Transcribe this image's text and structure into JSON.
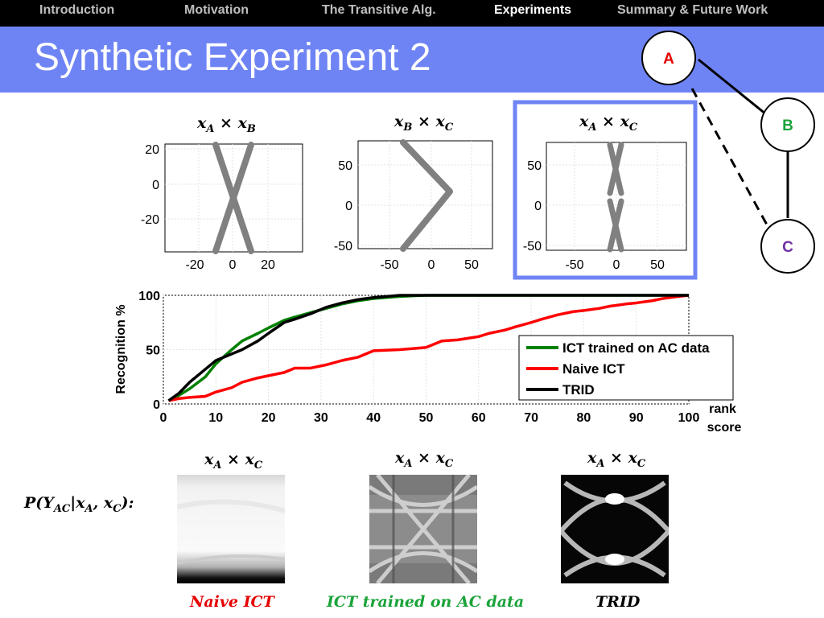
{
  "nav": {
    "items": [
      "Introduction",
      "Motivation",
      "The Transitive Alg.",
      "Experiments",
      "Summary & Future Work"
    ],
    "active_index": 3
  },
  "slide": {
    "title": "Synthetic Experiment 2"
  },
  "graph": {
    "nodes": [
      "A",
      "B",
      "C"
    ],
    "colors": {
      "A": "#e60000",
      "B": "#1aa33a",
      "C": "#7030a0"
    }
  },
  "scatter_plots": [
    {
      "title_main": [
        "x",
        "x"
      ],
      "title_subs": [
        "A",
        "B"
      ],
      "xticks": [
        "-20",
        "0",
        "20"
      ],
      "yticks": [
        "20",
        "0",
        "-20"
      ]
    },
    {
      "title_main": [
        "x",
        "x"
      ],
      "title_subs": [
        "B",
        "C"
      ],
      "xticks": [
        "-50",
        "0",
        "50"
      ],
      "yticks": [
        "50",
        "0",
        "-50"
      ]
    },
    {
      "title_main": [
        "x",
        "x"
      ],
      "title_subs": [
        "A",
        "C"
      ],
      "xticks": [
        "-50",
        "0",
        "50"
      ],
      "yticks": [
        "50",
        "0",
        "-50"
      ]
    }
  ],
  "times_symbol": "×",
  "chart_data": {
    "type": "line",
    "ylabel": "Recognition %",
    "xlabel_lines": [
      "rank",
      "score"
    ],
    "xlim": [
      0,
      100
    ],
    "ylim": [
      0,
      100
    ],
    "xticks": [
      "0",
      "10",
      "20",
      "30",
      "40",
      "50",
      "60",
      "70",
      "80",
      "90",
      "100"
    ],
    "yticks": [
      "0",
      "50",
      "100"
    ],
    "series": [
      {
        "name": "ICT trained on AC data",
        "color": "#008000",
        "points": [
          [
            1,
            3
          ],
          [
            3,
            8
          ],
          [
            5,
            14
          ],
          [
            8,
            25
          ],
          [
            10,
            37
          ],
          [
            13,
            50
          ],
          [
            15,
            58
          ],
          [
            18,
            65
          ],
          [
            20,
            70
          ],
          [
            23,
            77
          ],
          [
            25,
            80
          ],
          [
            28,
            84
          ],
          [
            31,
            88
          ],
          [
            34,
            92
          ],
          [
            37,
            95
          ],
          [
            40,
            97
          ],
          [
            45,
            99
          ],
          [
            50,
            100
          ],
          [
            100,
            100
          ]
        ]
      },
      {
        "name": "Naive ICT",
        "color": "#ff0000",
        "points": [
          [
            1,
            3
          ],
          [
            3,
            5
          ],
          [
            5,
            6
          ],
          [
            8,
            7
          ],
          [
            10,
            11
          ],
          [
            13,
            15
          ],
          [
            15,
            20
          ],
          [
            18,
            24
          ],
          [
            20,
            26
          ],
          [
            23,
            29
          ],
          [
            25,
            33
          ],
          [
            28,
            33
          ],
          [
            31,
            36
          ],
          [
            34,
            40
          ],
          [
            37,
            43
          ],
          [
            40,
            49
          ],
          [
            45,
            50
          ],
          [
            50,
            52
          ],
          [
            53,
            58
          ],
          [
            56,
            59
          ],
          [
            60,
            62
          ],
          [
            62,
            65
          ],
          [
            65,
            68
          ],
          [
            67,
            71
          ],
          [
            70,
            75
          ],
          [
            72,
            78
          ],
          [
            75,
            82
          ],
          [
            78,
            85
          ],
          [
            80,
            86
          ],
          [
            83,
            88
          ],
          [
            85,
            90
          ],
          [
            88,
            92
          ],
          [
            90,
            93
          ],
          [
            93,
            95
          ],
          [
            95,
            97
          ],
          [
            98,
            99
          ],
          [
            100,
            100
          ]
        ]
      },
      {
        "name": "TRID",
        "color": "#000000",
        "points": [
          [
            1,
            3
          ],
          [
            3,
            10
          ],
          [
            5,
            20
          ],
          [
            8,
            32
          ],
          [
            10,
            40
          ],
          [
            13,
            46
          ],
          [
            15,
            50
          ],
          [
            18,
            58
          ],
          [
            20,
            65
          ],
          [
            23,
            75
          ],
          [
            25,
            78
          ],
          [
            28,
            83
          ],
          [
            31,
            89
          ],
          [
            34,
            93
          ],
          [
            37,
            96
          ],
          [
            40,
            98
          ],
          [
            45,
            100
          ],
          [
            100,
            100
          ]
        ]
      }
    ]
  },
  "posterior": {
    "label_prefix": "P(Y",
    "label_sub_y": "AC",
    "label_sep": "|x",
    "label_sub_a": "A",
    "label_comma": ", x",
    "label_sub_c": "C",
    "label_suffix": "):"
  },
  "heatmaps": [
    {
      "title_subs": [
        "A",
        "C"
      ],
      "caption": "Naive ICT",
      "caption_color": "#e60000"
    },
    {
      "title_subs": [
        "A",
        "C"
      ],
      "caption": "ICT trained on AC data",
      "caption_color": "#1aa33a"
    },
    {
      "title_subs": [
        "A",
        "C"
      ],
      "caption": "TRID",
      "caption_color": "#000000"
    }
  ]
}
